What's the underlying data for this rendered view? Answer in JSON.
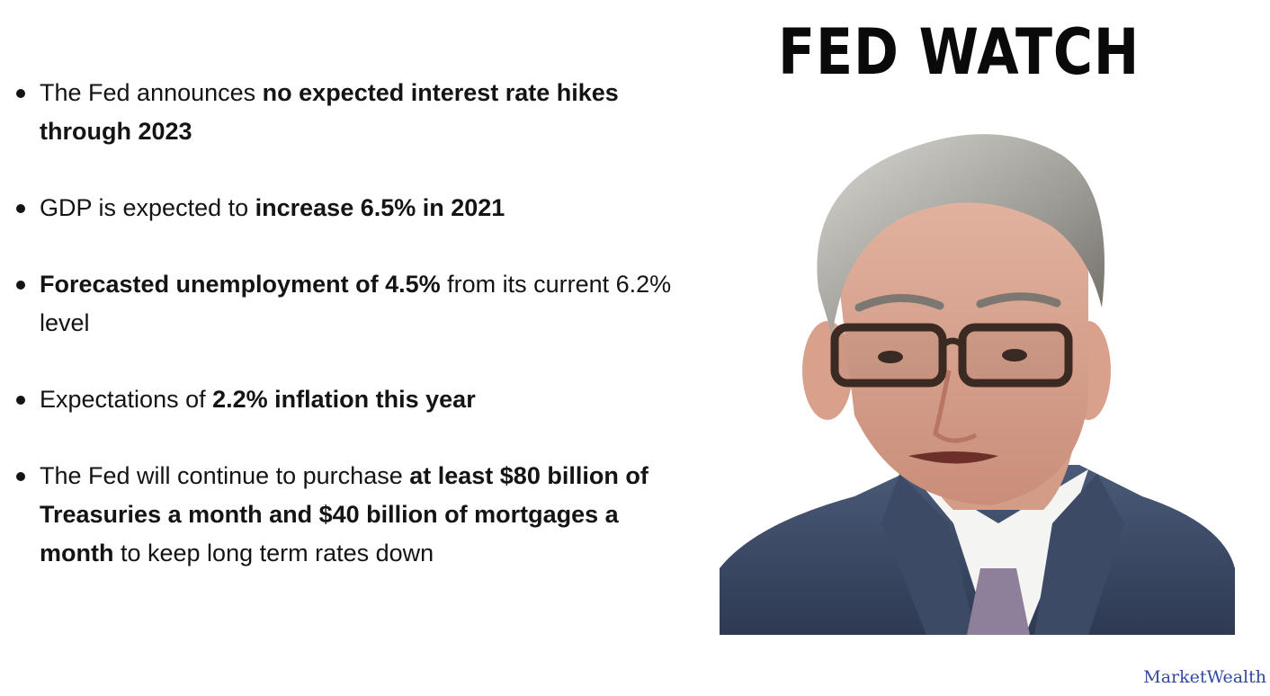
{
  "title": "FED WATCH",
  "bullets": [
    {
      "parts": [
        {
          "text": "The Fed announces ",
          "bold": false
        },
        {
          "text": "no expected interest rate hikes through 2023",
          "bold": true
        }
      ]
    },
    {
      "parts": [
        {
          "text": "GDP is expected to ",
          "bold": false
        },
        {
          "text": "increase 6.5% in 2021",
          "bold": true
        }
      ]
    },
    {
      "parts": [
        {
          "text": "Forecasted unemployment of 4.5%",
          "bold": true
        },
        {
          "text": " from its current 6.2% level",
          "bold": false
        }
      ]
    },
    {
      "parts": [
        {
          "text": "Expectations of ",
          "bold": false
        },
        {
          "text": "2.2% inflation this year",
          "bold": true
        }
      ]
    },
    {
      "parts": [
        {
          "text": "The Fed will continue to purchase ",
          "bold": false
        },
        {
          "text": "at least $80 billion of Treasuries a month and $40 billion of mortgages a month",
          "bold": true
        },
        {
          "text": " to keep long term rates down",
          "bold": false
        }
      ]
    }
  ],
  "brand": "MarketWealth",
  "colors": {
    "text": "#141414",
    "brand": "#2f4aa3",
    "suit": "#3a4a66",
    "shirt": "#f4f4f2",
    "tie": "#8e7f9a"
  }
}
